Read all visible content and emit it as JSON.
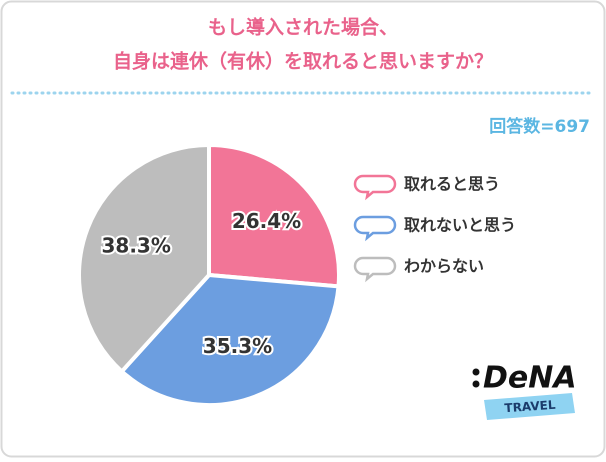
{
  "chart_data": {
    "type": "pie",
    "title": [
      "もし導入された場合、",
      "自身は連休（有休）を取れると思いますか？"
    ],
    "annotation": "回答数=697",
    "categories": [
      "取れると思う",
      "取れないと思う",
      "わからない"
    ],
    "values": [
      26.4,
      35.3,
      38.3
    ],
    "value_labels": [
      "26.4%",
      "35.3%",
      "38.3%"
    ],
    "colors": [
      "#f27597",
      "#6c9ee0",
      "#bdbdbd"
    ],
    "logo": {
      "name": "DeNA",
      "tag": "TRAVEL"
    }
  }
}
